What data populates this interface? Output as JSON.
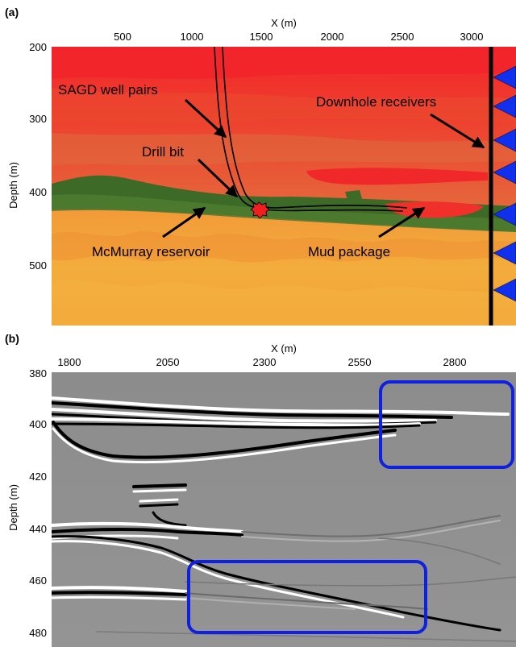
{
  "panel_a": {
    "label": "(a)",
    "xlabel": "X (m)",
    "ylabel": "Depth (m)",
    "x_ticks": [
      "500",
      "1000",
      "1500",
      "2000",
      "2500",
      "3000"
    ],
    "y_ticks": [
      "200",
      "300",
      "400",
      "500"
    ],
    "annotations": {
      "sagd": "SAGD well pairs",
      "receivers": "Downhole receivers",
      "drill_bit": "Drill bit",
      "reservoir": "McMurray reservoir",
      "mud": "Mud package"
    },
    "colors": {
      "top_red": "#f0302a",
      "mid_orange": "#e5683a",
      "reservoir_green": "#3d6a28",
      "lower_yellow": "#f1a63a",
      "receiver_blue": "#1030ee"
    }
  },
  "panel_b": {
    "label": "(b)",
    "xlabel": "X (m)",
    "ylabel": "Depth (m)",
    "x_ticks": [
      "1800",
      "2050",
      "2300",
      "2550",
      "2800"
    ],
    "y_ticks": [
      "380",
      "400",
      "420",
      "440",
      "460",
      "480"
    ],
    "colors": {
      "box": "#1020e0",
      "background": "#8f8f8f"
    }
  }
}
